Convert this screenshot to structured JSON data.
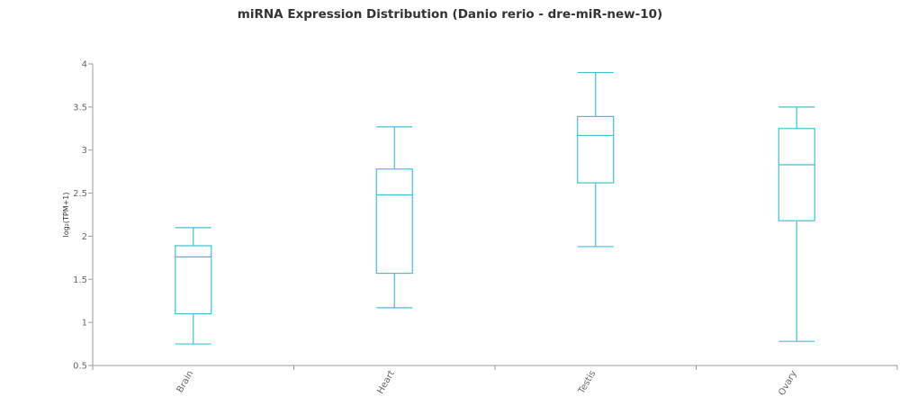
{
  "chart_data": {
    "type": "boxplot",
    "title": "miRNA Expression Distribution (Danio rerio - dre-miR-new-10)",
    "xlabel": "",
    "ylabel": "log₂(TPM+1)",
    "ylim": [
      0.5,
      4
    ],
    "yticks": [
      "0.5",
      "1",
      "1.5",
      "2",
      "2.5",
      "3",
      "3.5",
      "4"
    ],
    "grid": false,
    "colors": {
      "box": "#3fc1d3",
      "axis": "#999999",
      "text": "#666666"
    },
    "categories": [
      "Brain",
      "Heart",
      "Testis",
      "Ovary"
    ],
    "series": [
      {
        "boxes": [
          {
            "min": 0.75,
            "q1": 1.1,
            "median": 1.76,
            "q3": 1.89,
            "max": 2.1
          },
          {
            "min": 1.17,
            "q1": 1.57,
            "median": 2.48,
            "q3": 2.78,
            "max": 3.27
          },
          {
            "min": 1.88,
            "q1": 2.62,
            "median": 3.17,
            "q3": 3.39,
            "max": 3.9
          },
          {
            "min": 0.78,
            "q1": 2.18,
            "median": 2.83,
            "q3": 3.25,
            "max": 3.5
          }
        ]
      }
    ]
  }
}
